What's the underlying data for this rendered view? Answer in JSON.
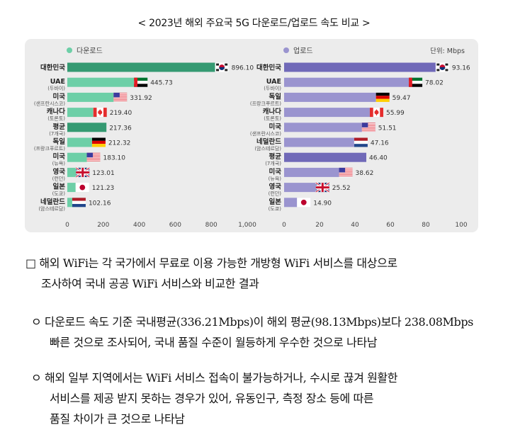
{
  "title": "< 2023년 해외 주요국 5G 다운로드/업로드 속도 비교 >",
  "unit": "단위: Mbps",
  "colors": {
    "download": "#6dcfa7",
    "download_highlight": "#359a72",
    "upload": "#9a94cf",
    "upload_highlight": "#7069b8",
    "panel": "#ececec"
  },
  "chart_data": [
    {
      "type": "bar",
      "orientation": "horizontal",
      "legend": "다운로드",
      "xlim": [
        0,
        1000
      ],
      "ticks": [
        "0",
        "200",
        "400",
        "600",
        "800",
        "1,000"
      ],
      "tick_values": [
        0,
        200,
        400,
        600,
        800,
        1000
      ],
      "categories": [
        {
          "name": "대한민국",
          "sub": "",
          "flag": "kr",
          "value": 896.1,
          "label": "896.10",
          "highlight": true
        },
        {
          "name": "UAE",
          "sub": "(두바이)",
          "flag": "ae",
          "value": 445.73,
          "label": "445.73"
        },
        {
          "name": "미국",
          "sub": "(샌프란시스코)",
          "flag": "us",
          "value": 331.92,
          "label": "331.92"
        },
        {
          "name": "캐나다",
          "sub": "(토론토)",
          "flag": "ca",
          "value": 219.4,
          "label": "219.40"
        },
        {
          "name": "평균",
          "sub": "(7개국)",
          "flag": "",
          "value": 217.36,
          "label": "217.36",
          "highlight": true
        },
        {
          "name": "독일",
          "sub": "(프랑크푸르트)",
          "flag": "de",
          "value": 212.32,
          "label": "212.32"
        },
        {
          "name": "미국",
          "sub": "(뉴욕)",
          "flag": "us",
          "value": 183.1,
          "label": "183.10"
        },
        {
          "name": "영국",
          "sub": "(런던)",
          "flag": "gb",
          "value": 123.01,
          "label": "123.01"
        },
        {
          "name": "일본",
          "sub": "(도쿄)",
          "flag": "jp",
          "value": 121.23,
          "label": "121.23"
        },
        {
          "name": "네덜란드",
          "sub": "(암스테르담)",
          "flag": "nl",
          "value": 102.16,
          "label": "102.16"
        }
      ]
    },
    {
      "type": "bar",
      "orientation": "horizontal",
      "legend": "업로드",
      "xlim": [
        0,
        100
      ],
      "ticks": [
        "0",
        "20",
        "40",
        "60",
        "80",
        "100"
      ],
      "tick_values": [
        0,
        20,
        40,
        60,
        80,
        100
      ],
      "categories": [
        {
          "name": "대한민국",
          "sub": "",
          "flag": "kr",
          "value": 93.16,
          "label": "93.16",
          "highlight": true
        },
        {
          "name": "UAE",
          "sub": "(두바이)",
          "flag": "ae",
          "value": 78.02,
          "label": "78.02"
        },
        {
          "name": "독일",
          "sub": "(프랑크푸르트)",
          "flag": "de",
          "value": 59.47,
          "label": "59.47"
        },
        {
          "name": "캐나다",
          "sub": "(토론토)",
          "flag": "ca",
          "value": 55.99,
          "label": "55.99"
        },
        {
          "name": "미국",
          "sub": "(샌프란시스코)",
          "flag": "us",
          "value": 51.51,
          "label": "51.51"
        },
        {
          "name": "네덜란드",
          "sub": "(암스테르담)",
          "flag": "nl",
          "value": 47.16,
          "label": "47.16"
        },
        {
          "name": "평균",
          "sub": "(7개국)",
          "flag": "",
          "value": 46.4,
          "label": "46.40",
          "highlight": true
        },
        {
          "name": "미국",
          "sub": "(뉴욕)",
          "flag": "us",
          "value": 38.62,
          "label": "38.62"
        },
        {
          "name": "영국",
          "sub": "(런던)",
          "flag": "gb",
          "value": 25.52,
          "label": "25.52"
        },
        {
          "name": "일본",
          "sub": "(도쿄)",
          "flag": "jp",
          "value": 14.9,
          "label": "14.90"
        }
      ]
    }
  ],
  "text": {
    "p1_l1": "□ 해외 WiFi는 각 국가에서 무료로 이용 가능한 개방형 WiFi 서비스를 대상으로",
    "p1_l2": "조사하여 국내 공공 WiFi 서비스와 비교한 결과",
    "p2_l1": "ㅇ  다운로드 속도 기준 국내평균(336.21Mbps)이 해외 평균(98.13Mbps)보다 238.08Mbps",
    "p2_l2": "빠른 것으로 조사되어, 국내 품질 수준이 월등하게 우수한 것으로 나타남",
    "p3_l1": "ㅇ  해외 일부 지역에서는 WiFi 서비스 접속이 불가능하거나, 수시로 끊겨 원활한",
    "p3_l2": "서비스를 제공 받지 못하는 경우가 있어, 유동인구, 측정 장소 등에 따른",
    "p3_l3": "품질 차이가 큰 것으로 나타남"
  }
}
